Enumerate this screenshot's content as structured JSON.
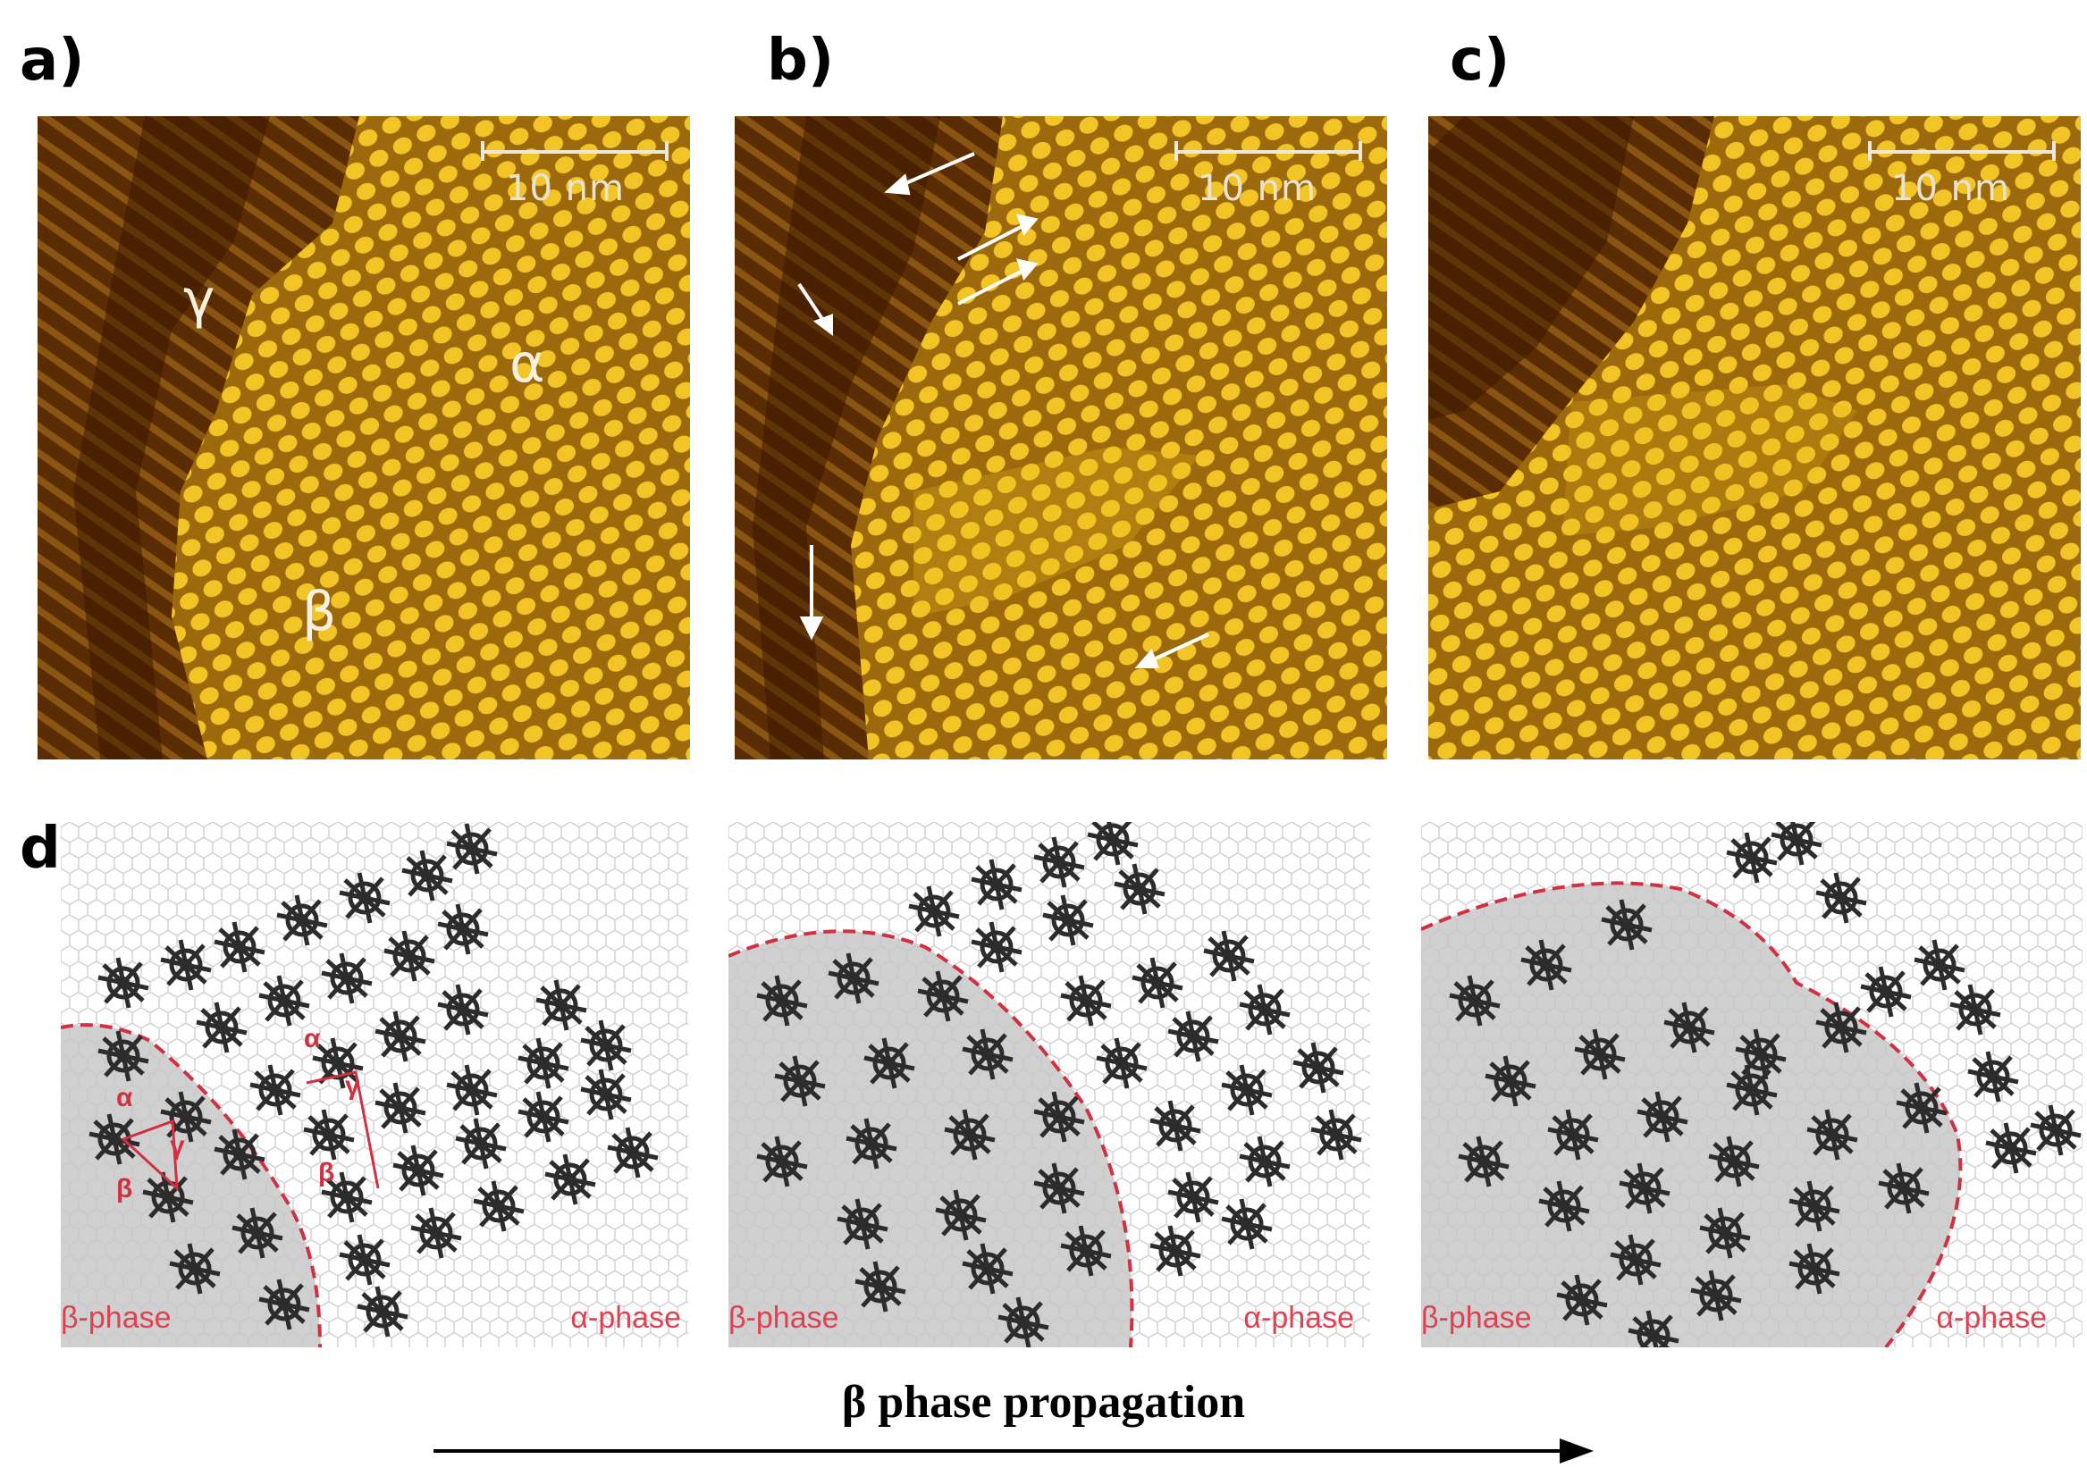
{
  "panels": {
    "a": {
      "label": "a)",
      "scale_text": "10 nm",
      "phase_labels": [
        "γ",
        "α",
        "β"
      ]
    },
    "b": {
      "label": "b)",
      "scale_text": "10 nm"
    },
    "c": {
      "label": "c)",
      "scale_text": "10 nm"
    },
    "d": {
      "label": "d)",
      "models": [
        {
          "left_label": "β-phase",
          "right_label": "α-phase",
          "inset_labels": [
            "α",
            "γ",
            "β",
            "α",
            "γ",
            "β"
          ]
        },
        {
          "left_label": "β-phase",
          "right_label": "α-phase"
        },
        {
          "left_label": "β-phase",
          "right_label": "α-phase"
        }
      ]
    }
  },
  "caption": "β phase propagation",
  "colors": {
    "stm_dark": "#3a1a00",
    "stm_mid": "#9a6a10",
    "stm_bright": "#f0c020",
    "phase_red": "#d03040",
    "shade": "#c8c8c8"
  },
  "icons": [
    "white-arrow-icon",
    "black-arrow-icon"
  ]
}
